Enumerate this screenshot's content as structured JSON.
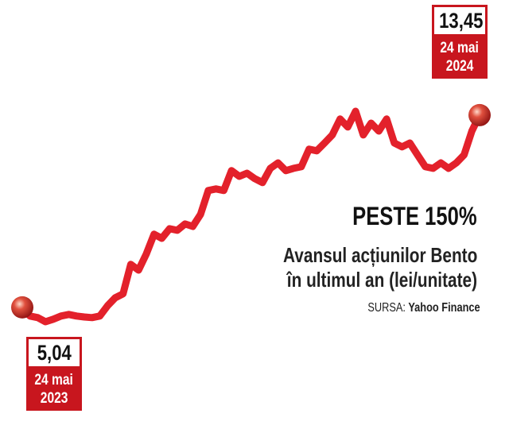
{
  "chart_data": {
    "type": "line",
    "title": "PESTE 150%",
    "subtitle": [
      "Avansul acțiunilor Bento",
      "în ultimul an (lei/unitate)"
    ],
    "source_label": "SURSA:",
    "source": "Yahoo Finance",
    "color": "#e3212b",
    "values": [
      5.04,
      4.66,
      4.59,
      4.41,
      4.52,
      4.66,
      4.73,
      4.66,
      4.62,
      4.59,
      4.66,
      5.11,
      5.46,
      5.63,
      6.92,
      6.67,
      7.37,
      8.24,
      8.06,
      8.48,
      8.41,
      8.69,
      8.58,
      9.11,
      10.15,
      10.22,
      10.15,
      11.02,
      10.77,
      10.91,
      10.67,
      10.5,
      11.12,
      11.36,
      11.02,
      11.12,
      11.19,
      11.96,
      11.89,
      12.23,
      12.58,
      13.28,
      12.93,
      13.62,
      12.58,
      13.1,
      12.75,
      13.28,
      12.23,
      12.06,
      12.23,
      11.71,
      11.19,
      11.12,
      11.36,
      11.12,
      11.36,
      11.71,
      12.75,
      13.45
    ],
    "endpoints": [
      {
        "label": "5,04",
        "day": "24 mai",
        "year": "2023"
      },
      {
        "label": "13,45",
        "day": "24 mai",
        "year": "2024"
      }
    ]
  }
}
